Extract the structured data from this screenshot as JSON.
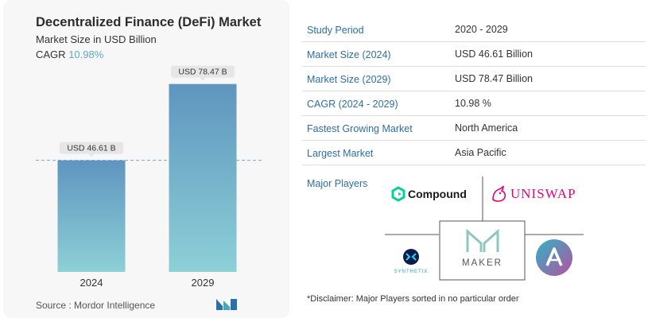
{
  "left": {
    "title": "Decentralized Finance (DeFi) Market",
    "subtitle": "Market Size in USD Billion",
    "cagr_label": "CAGR",
    "cagr_value": "10.98%",
    "source": "Source : Mordor Intelligence"
  },
  "chart_data": {
    "type": "bar",
    "categories": [
      "2024",
      "2029"
    ],
    "values": [
      46.61,
      78.47
    ],
    "data_labels": [
      "USD 46.61 B",
      "USD 78.47 B"
    ],
    "title": "Decentralized Finance (DeFi) Market",
    "subtitle": "Market Size in USD Billion",
    "xlabel": "",
    "ylabel": "",
    "ylim": [
      0,
      85
    ],
    "grid": false,
    "reference_line": "dashed line at 2024 value",
    "bar_color_top": "#5f95bf",
    "bar_color_bottom": "#8dd0d6"
  },
  "table": {
    "rows": [
      {
        "key": "Study Period",
        "value": "2020 - 2029"
      },
      {
        "key": "Market Size (2024)",
        "value": "USD 46.61 Billion"
      },
      {
        "key": "Market Size (2029)",
        "value": "USD 78.47 Billion"
      },
      {
        "key": "CAGR (2024 - 2029)",
        "value": "10.98 %"
      },
      {
        "key": "Fastest Growing Market",
        "value": "North America"
      },
      {
        "key": "Largest Market",
        "value": "Asia Pacific"
      }
    ]
  },
  "players": {
    "label": "Major Players",
    "logos": [
      {
        "name": "Compound",
        "icon": "compound-logo"
      },
      {
        "name": "UNISWAP",
        "icon": "uniswap-logo"
      },
      {
        "name": "SYNTHETIX",
        "icon": "synthetix-logo"
      },
      {
        "name": "MAKER",
        "icon": "maker-logo"
      },
      {
        "name": "",
        "icon": "aave-logo"
      }
    ]
  },
  "disclaimer": "*Disclaimer: Major Players sorted in no particular order",
  "colors": {
    "accent_blue": "#2d6fa3",
    "cagr_teal": "#5fa8c9",
    "uniswap_pink": "#e6007a",
    "compound_green": "#00d395"
  }
}
